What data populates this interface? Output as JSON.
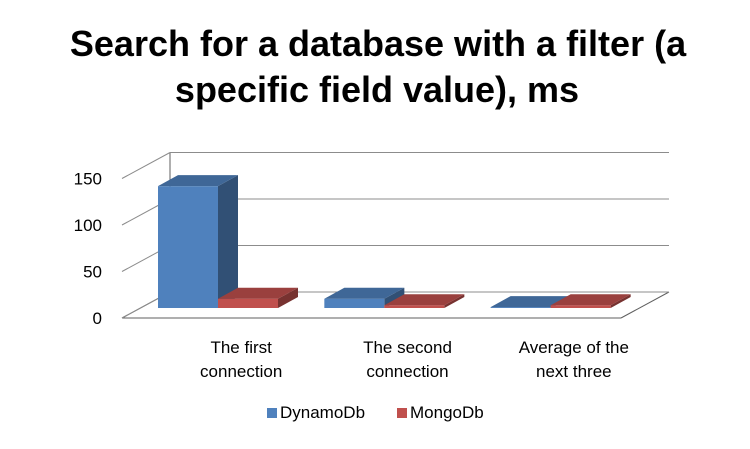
{
  "chart_data": {
    "type": "bar",
    "title": "Search for a database with a filter (a specific field value), ms",
    "title_lines": [
      "Search for a database with a filter (a",
      "specific field value), ms"
    ],
    "categories": [
      "The first connection",
      "The second connection",
      "Average of the next three"
    ],
    "category_lines": [
      [
        "The first",
        "connection"
      ],
      [
        "The second",
        "connection"
      ],
      [
        "Average of the",
        "next three"
      ]
    ],
    "series": [
      {
        "name": "DynamoDb",
        "color": "#4f81bd",
        "values": [
          131,
          10,
          1
        ]
      },
      {
        "name": "MongoDb",
        "color": "#c0504d",
        "values": [
          10,
          3,
          3
        ]
      }
    ],
    "yticks": [
      "0",
      "50",
      "100",
      "150"
    ],
    "ylim": [
      0,
      150
    ],
    "grid": true,
    "legend": "bottom",
    "style": "3d-clustered-column"
  }
}
